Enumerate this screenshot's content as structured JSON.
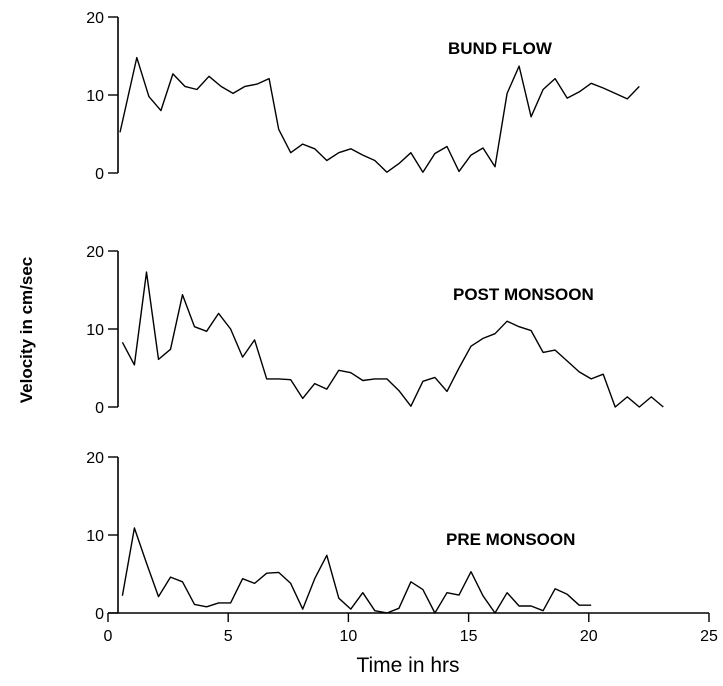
{
  "chart_data": {
    "type": "line",
    "ylabel": "Velocity in cm/sec",
    "xlabel": "Time in hrs",
    "xlim": [
      0,
      25
    ],
    "x_ticks": [
      0,
      5,
      10,
      15,
      20,
      25
    ],
    "panels": [
      {
        "title": "BUND FLOW",
        "ylim": [
          0,
          20
        ],
        "y_ticks": [
          0,
          10,
          20
        ],
        "series": [
          {
            "x": [
              0.5,
              1.2,
              1.7,
              2.2,
              2.7,
              3.2,
              3.7,
              4.2,
              4.7,
              5.2,
              5.7,
              6.2,
              6.7,
              7.1,
              7.6,
              8.1,
              8.6,
              9.1,
              9.6,
              10.1,
              10.6,
              11.1,
              11.6,
              12.1,
              12.6,
              13.1,
              13.6,
              14.1,
              14.6,
              15.1,
              15.6,
              16.1,
              16.6,
              17.1,
              17.6,
              18.1,
              18.6,
              19.1,
              19.6,
              20.1,
              20.6,
              21.1,
              21.6,
              22.1
            ],
            "y": [
              5.2,
              14.8,
              9.8,
              8.0,
              12.7,
              11.1,
              10.7,
              12.4,
              11.1,
              10.2,
              11.1,
              11.4,
              12.1,
              5.6,
              2.6,
              3.7,
              3.1,
              1.6,
              2.6,
              3.1,
              2.3,
              1.6,
              0.1,
              1.2,
              2.6,
              0.1,
              2.5,
              3.4,
              0.2,
              2.3,
              3.2,
              0.8,
              10.2,
              13.7,
              7.2,
              10.7,
              12.1,
              9.6,
              10.4,
              11.5,
              10.9,
              10.2,
              9.5,
              11.1
            ]
          }
        ]
      },
      {
        "title": "POST MONSOON",
        "ylim": [
          0,
          20
        ],
        "y_ticks": [
          0,
          10,
          20
        ],
        "series": [
          {
            "x": [
              0.6,
              1.1,
              1.6,
              2.1,
              2.6,
              3.1,
              3.6,
              4.1,
              4.6,
              5.1,
              5.6,
              6.1,
              6.6,
              7.1,
              7.6,
              8.1,
              8.6,
              9.1,
              9.6,
              10.1,
              10.6,
              11.1,
              11.6,
              12.1,
              12.6,
              13.1,
              13.6,
              14.1,
              14.6,
              15.1,
              15.6,
              16.1,
              16.6,
              17.1,
              17.6,
              18.1,
              18.6,
              19.1,
              19.6,
              20.1,
              20.6,
              21.1,
              21.6,
              22.1,
              22.6,
              23.1
            ],
            "y": [
              8.3,
              5.4,
              17.3,
              6.1,
              7.4,
              14.4,
              10.3,
              9.7,
              12.0,
              10.0,
              6.4,
              8.6,
              3.6,
              3.6,
              3.5,
              1.1,
              3.0,
              2.3,
              4.7,
              4.4,
              3.4,
              3.6,
              3.6,
              2.1,
              0.1,
              3.3,
              3.8,
              2.0,
              5.0,
              7.8,
              8.8,
              9.4,
              11.0,
              10.3,
              9.8,
              7.0,
              7.3,
              5.9,
              4.5,
              3.6,
              4.2,
              0.0,
              1.3,
              0.0,
              1.3,
              0.0
            ]
          }
        ]
      },
      {
        "title": "PRE MONSOON",
        "ylim": [
          0,
          20
        ],
        "y_ticks": [
          0,
          10,
          20
        ],
        "series": [
          {
            "x": [
              0.6,
              1.1,
              1.6,
              2.1,
              2.6,
              3.1,
              3.6,
              4.1,
              4.6,
              5.1,
              5.6,
              6.1,
              6.6,
              7.1,
              7.6,
              8.1,
              8.6,
              9.1,
              9.6,
              10.1,
              10.6,
              11.1,
              11.6,
              12.1,
              12.6,
              13.1,
              13.6,
              14.1,
              14.6,
              15.1,
              15.6,
              16.1,
              16.6,
              17.1,
              17.6,
              18.1,
              18.6,
              19.1,
              19.6,
              20.1
            ],
            "y": [
              2.2,
              10.9,
              6.4,
              2.1,
              4.6,
              4.0,
              1.1,
              0.8,
              1.3,
              1.3,
              4.4,
              3.8,
              5.1,
              5.2,
              3.8,
              0.5,
              4.4,
              7.4,
              1.9,
              0.5,
              2.6,
              0.3,
              0.0,
              0.6,
              4.0,
              3.0,
              0.0,
              2.6,
              2.3,
              5.3,
              2.2,
              0.0,
              2.6,
              0.9,
              0.9,
              0.3,
              3.1,
              2.4,
              1.0,
              1.0
            ]
          }
        ]
      }
    ]
  }
}
